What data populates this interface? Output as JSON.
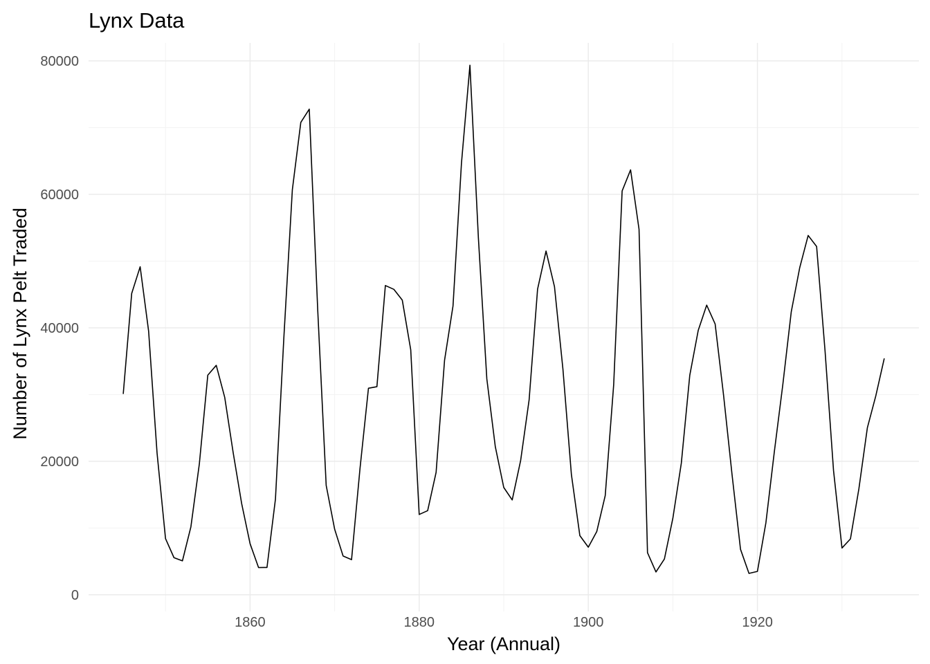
{
  "chart_data": {
    "type": "line",
    "title": "Lynx Data",
    "xlabel": "Year (Annual)",
    "ylabel": "Number of Lynx Pelt Traded",
    "xlim": [
      1840.9,
      1939.1
    ],
    "ylim": [
      -2500,
      82700
    ],
    "x_ticks": [
      1860,
      1880,
      1900,
      1920
    ],
    "x_tick_labels": [
      "1860",
      "1880",
      "1900",
      "1920"
    ],
    "x_minor_ticks": [
      1850,
      1870,
      1890,
      1910,
      1930
    ],
    "y_ticks": [
      0,
      20000,
      40000,
      60000,
      80000
    ],
    "y_tick_labels": [
      "0",
      "20000",
      "40000",
      "60000",
      "80000"
    ],
    "y_minor_ticks": [
      10000,
      30000,
      50000,
      70000
    ],
    "grid": true,
    "legend": "none",
    "series": [
      {
        "color": "#000000",
        "x": [
          1845,
          1846,
          1847,
          1848,
          1849,
          1850,
          1851,
          1852,
          1853,
          1854,
          1855,
          1856,
          1857,
          1858,
          1859,
          1860,
          1861,
          1862,
          1863,
          1864,
          1865,
          1866,
          1867,
          1868,
          1869,
          1870,
          1871,
          1872,
          1873,
          1874,
          1875,
          1876,
          1877,
          1878,
          1879,
          1880,
          1881,
          1882,
          1883,
          1884,
          1885,
          1886,
          1887,
          1888,
          1889,
          1890,
          1891,
          1892,
          1893,
          1894,
          1895,
          1896,
          1897,
          1898,
          1899,
          1900,
          1901,
          1902,
          1903,
          1904,
          1905,
          1906,
          1907,
          1908,
          1909,
          1910,
          1911,
          1912,
          1913,
          1914,
          1915,
          1916,
          1917,
          1918,
          1919,
          1920,
          1921,
          1922,
          1923,
          1924,
          1925,
          1926,
          1927,
          1928,
          1929,
          1930,
          1931,
          1932,
          1933,
          1934,
          1935
        ],
        "values": [
          30090,
          45150,
          49150,
          39520,
          21230,
          8420,
          5560,
          5080,
          10170,
          19600,
          32910,
          34380,
          29590,
          21300,
          13690,
          7650,
          4080,
          4090,
          14330,
          38640,
          60700,
          70790,
          72770,
          42680,
          16390,
          9830,
          5800,
          5260,
          18910,
          30950,
          31180,
          46340,
          45770,
          44150,
          36710,
          12030,
          12600,
          18340,
          35140,
          43290,
          64690,
          79350,
          53490,
          32330,
          22200,
          16080,
          14210,
          20130,
          29200,
          45790,
          51510,
          46170,
          33790,
          18020,
          8860,
          7130,
          9470,
          14860,
          31450,
          60510,
          63670,
          54760,
          6300,
          3410,
          5360,
          11470,
          19720,
          32890,
          39620,
          43400,
          40570,
          29860,
          17990,
          6810,
          3200,
          3500,
          10770,
          21430,
          31450,
          42390,
          49000,
          53840,
          52190,
          36500,
          18620,
          7000,
          8370,
          15890,
          25010,
          29810,
          35420
        ]
      }
    ]
  }
}
